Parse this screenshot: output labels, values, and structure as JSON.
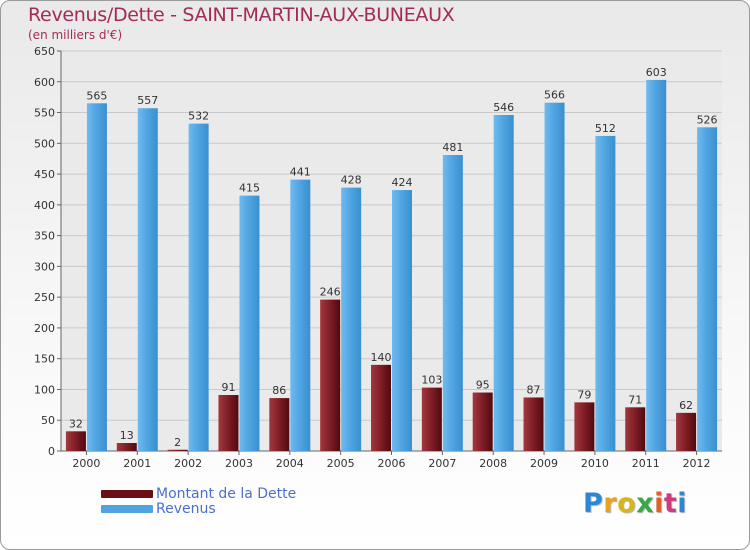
{
  "chart_data": {
    "type": "bar",
    "title": "Revenus/Dette - SAINT-MARTIN-AUX-BUNEAUX",
    "subtitle": "(en milliers d'€)",
    "categories": [
      "2000",
      "2001",
      "2002",
      "2003",
      "2004",
      "2005",
      "2006",
      "2007",
      "2008",
      "2009",
      "2010",
      "2011",
      "2012"
    ],
    "series": [
      {
        "name": "Montant de la Dette",
        "color": "#7a1a22",
        "values": [
          32,
          13,
          2,
          91,
          86,
          246,
          140,
          103,
          95,
          87,
          79,
          71,
          62
        ]
      },
      {
        "name": "Revenus",
        "color": "#4ea3e0",
        "values": [
          565,
          557,
          532,
          415,
          441,
          428,
          424,
          481,
          546,
          566,
          512,
          603,
          526
        ]
      }
    ],
    "ylim": [
      0,
      650
    ],
    "yticks": [
      0,
      50,
      100,
      150,
      200,
      250,
      300,
      350,
      400,
      450,
      500,
      550,
      600,
      650
    ],
    "grid": true,
    "legend_position": "bottom-left"
  },
  "logo": {
    "text": "Proxiti"
  }
}
